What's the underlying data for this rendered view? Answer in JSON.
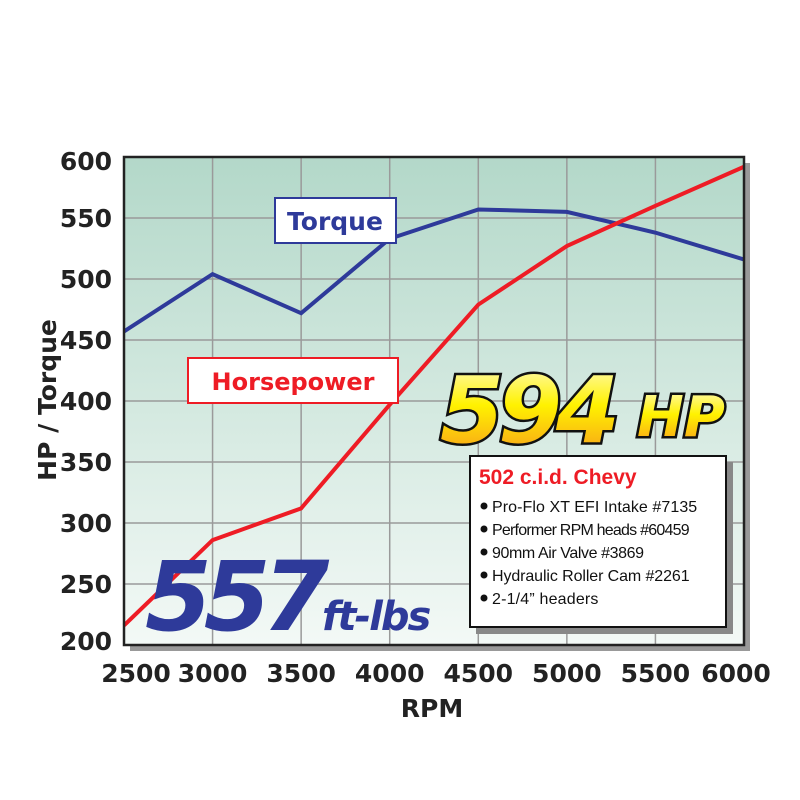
{
  "chart_data": {
    "type": "line",
    "xlabel": "RPM",
    "ylabel": "HP / Torque",
    "xlim": [
      2500,
      6000
    ],
    "ylim": [
      200,
      600
    ],
    "x": [
      2500,
      3000,
      3500,
      4000,
      4500,
      5000,
      5500,
      6000
    ],
    "xticks": [
      "2500",
      "3000",
      "3500",
      "4000",
      "4500",
      "5000",
      "5500",
      "6000"
    ],
    "yticks": [
      "200",
      "250",
      "300",
      "350",
      "400",
      "450",
      "500",
      "550",
      "600"
    ],
    "grid": true,
    "series": [
      {
        "name": "Torque",
        "color": "#2e3a9a",
        "values": [
          457,
          504,
          472,
          533,
          557,
          555,
          538,
          516
        ]
      },
      {
        "name": "Horsepower",
        "color": "#ee1c25",
        "values": [
          216,
          286,
          312,
          397,
          479,
          527,
          560,
          592
        ]
      }
    ],
    "annotations": {
      "peak_hp": {
        "number": "594",
        "unit": "HP"
      },
      "peak_torque": {
        "number": "557",
        "unit": "ft-lbs"
      },
      "spec_box": {
        "title": "502 c.i.d. Chevy",
        "items": [
          "Pro-Flo XT EFI Intake #7135",
          "Performer RPM heads #60459",
          "90mm Air Valve #3869",
          "Hydraulic Roller Cam #2261",
          "2-1/4” headers"
        ]
      }
    },
    "background_gradient": [
      "#b3d8c9",
      "#f3f9f6"
    ]
  }
}
